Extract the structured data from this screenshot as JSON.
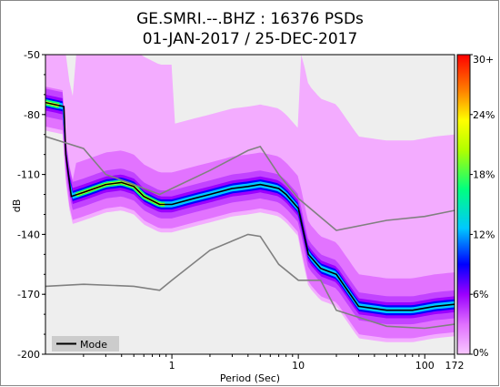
{
  "chart_data": {
    "type": "heatmap",
    "title_line1": "GE.SMRI.--.BHZ : 16376 PSDs",
    "title_line2": "01-JAN-2017 / 25-DEC-2017",
    "xlabel": "Period (Sec)",
    "ylabel": "dB",
    "x_scale": "log",
    "xlim": [
      0.1,
      172
    ],
    "ylim": [
      -200,
      -50
    ],
    "x_ticks": [
      {
        "value": 1,
        "label": "1"
      },
      {
        "value": 10,
        "label": "10"
      },
      {
        "value": 100,
        "label": "100"
      },
      {
        "value": 172,
        "label": "172"
      }
    ],
    "y_ticks": [
      {
        "value": -50,
        "label": "-50"
      },
      {
        "value": -80,
        "label": "-80"
      },
      {
        "value": -110,
        "label": "-110"
      },
      {
        "value": -140,
        "label": "-140"
      },
      {
        "value": -170,
        "label": "-170"
      },
      {
        "value": -200,
        "label": "-200"
      }
    ],
    "colorbar": {
      "ticks": [
        "0%",
        "6%",
        "12%",
        "18%",
        "24%",
        "30+"
      ],
      "colors": [
        "#f8c8ff",
        "#e070ff",
        "#9b00ff",
        "#0000ff",
        "#00c8ff",
        "#00ff80",
        "#b0ff00",
        "#ffff00",
        "#ff8000",
        "#ff0000"
      ]
    },
    "legend": {
      "label": "Mode",
      "position": "bottom-left"
    },
    "series": [
      {
        "name": "Mode",
        "color": "#000000",
        "x": [
          0.1,
          0.14,
          0.145,
          0.16,
          0.2,
          0.3,
          0.4,
          0.5,
          0.6,
          0.8,
          1.0,
          1.5,
          2,
          3,
          4,
          5,
          6,
          7,
          8,
          10,
          12,
          15,
          20,
          30,
          50,
          80,
          120,
          172
        ],
        "y": [
          -74,
          -76,
          -100,
          -121,
          -119,
          -115,
          -114,
          -116,
          -121,
          -125,
          -125,
          -122,
          -120,
          -117,
          -116,
          -115,
          -116,
          -117,
          -120,
          -127,
          -150,
          -157,
          -160,
          -176,
          -178,
          -178,
          -176,
          -175
        ]
      },
      {
        "name": "NHNM",
        "color": "#808080",
        "x": [
          0.1,
          0.2,
          0.3,
          0.5,
          0.8,
          1,
          2,
          4,
          5,
          7,
          10,
          20,
          50,
          100,
          172
        ],
        "y": [
          -91,
          -97,
          -110,
          -115,
          -120,
          -117,
          -108,
          -98,
          -96,
          -110,
          -122,
          -138,
          -133,
          -131,
          -128
        ]
      },
      {
        "name": "NLNM",
        "color": "#808080",
        "x": [
          0.1,
          0.2,
          0.5,
          0.8,
          1,
          2,
          4,
          5,
          7,
          10,
          15,
          20,
          50,
          100,
          172
        ],
        "y": [
          -166,
          -165,
          -166,
          -168,
          -163,
          -148,
          -140,
          -141,
          -155,
          -163,
          -163,
          -178,
          -186,
          -187,
          -185
        ]
      }
    ]
  }
}
